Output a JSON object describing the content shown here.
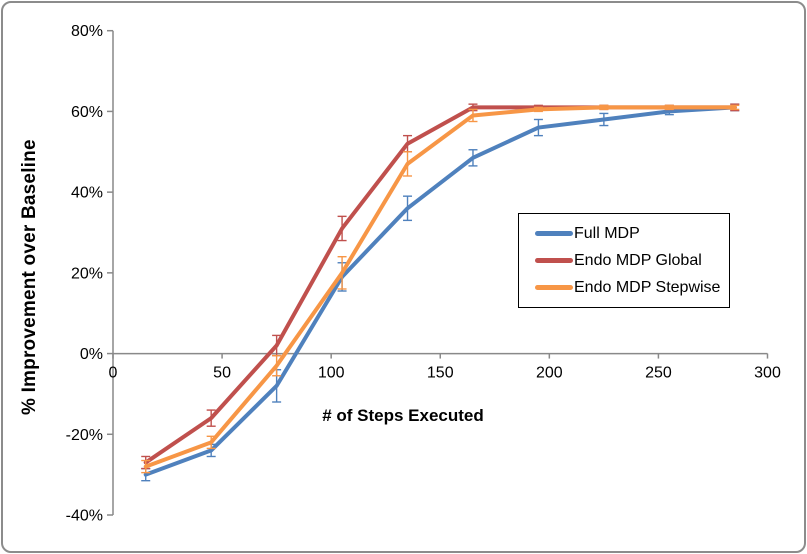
{
  "chart_data": {
    "type": "line",
    "title": "",
    "xlabel": "# of Steps Executed",
    "ylabel": "% Improvement over Baseline",
    "xlim": [
      0,
      300
    ],
    "ylim": [
      -40,
      80
    ],
    "x_ticks": [
      0,
      50,
      100,
      150,
      200,
      250,
      300
    ],
    "y_ticks": [
      -40,
      -20,
      0,
      20,
      40,
      60,
      80
    ],
    "y_tick_suffix": "%",
    "grid": false,
    "error_bars": true,
    "legend_position": "middle-right",
    "x": [
      15,
      45,
      75,
      105,
      135,
      165,
      195,
      225,
      255,
      285
    ],
    "series": [
      {
        "name": "Full MDP",
        "color": "#4F81BD",
        "values": [
          -30,
          -24,
          -8,
          19,
          36,
          48.5,
          56,
          58,
          60,
          61
        ],
        "errors": [
          1.5,
          1.5,
          4,
          3.5,
          3,
          2,
          2,
          1.5,
          0.8,
          0.8
        ]
      },
      {
        "name": "Endo MDP Global",
        "color": "#C0504D",
        "values": [
          -27,
          -16,
          2,
          31,
          52,
          61,
          61,
          61,
          61,
          61
        ],
        "errors": [
          1.5,
          2,
          2.5,
          3,
          2,
          0.8,
          0.5,
          0.5,
          0.5,
          0.8
        ]
      },
      {
        "name": "Endo MDP Stepwise",
        "color": "#F79646",
        "values": [
          -28,
          -22,
          -3,
          20,
          47,
          59,
          60.5,
          61,
          61,
          61
        ],
        "errors": [
          1.5,
          1.5,
          2.5,
          4,
          3,
          1.5,
          0.5,
          0.5,
          0.5,
          0.5
        ]
      }
    ]
  },
  "colors": {
    "axis": "#898989",
    "text": "#000000",
    "frame_border": "#8c8c8c",
    "background": "#FFFFFF"
  }
}
